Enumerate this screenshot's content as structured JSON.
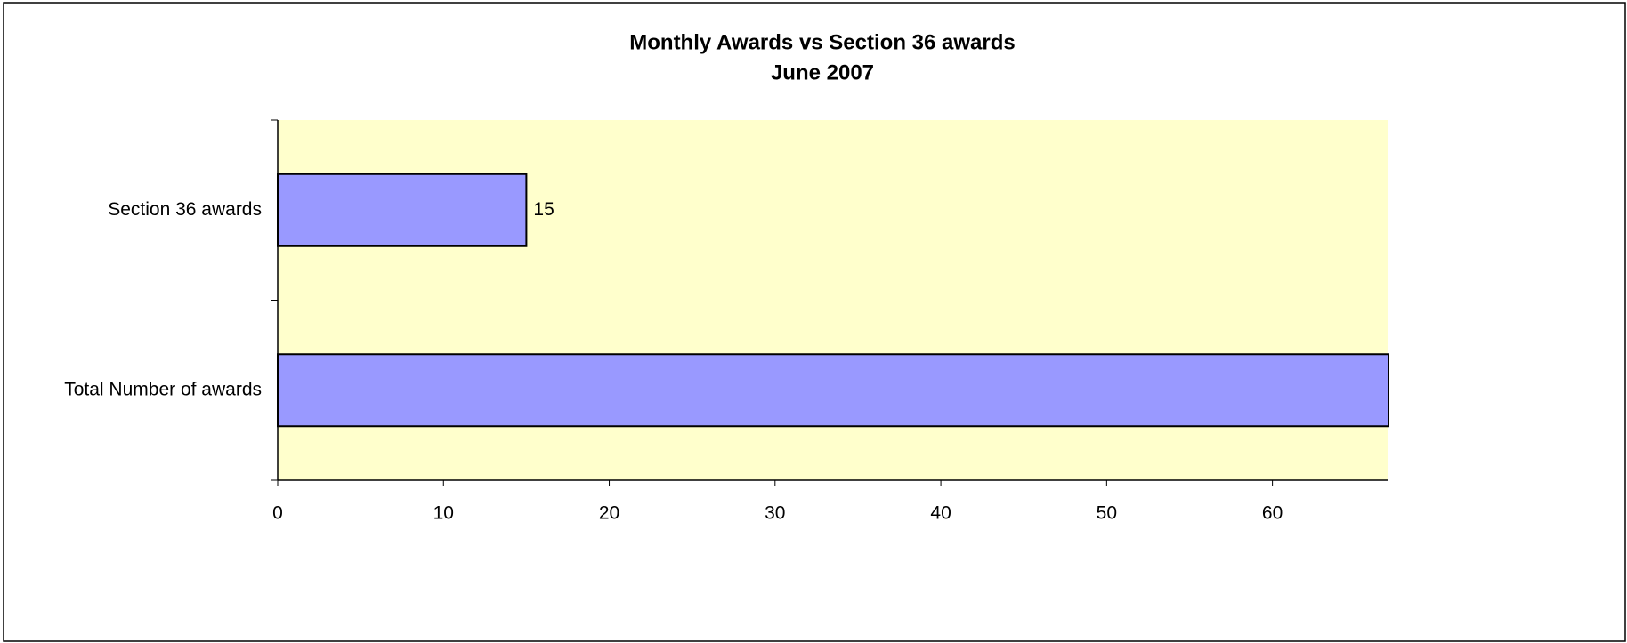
{
  "chart_data": {
    "type": "hbar",
    "title": "Monthly Awards vs Section 36 awards",
    "subtitle": "June 2007",
    "categories": [
      "Section 36 awards",
      "Total Number of awards"
    ],
    "values": [
      15,
      67
    ],
    "color": "#9999ff",
    "background": "#ffffcc",
    "xlim": [
      0,
      67
    ],
    "xticks": [
      0,
      10,
      20,
      30,
      40,
      50,
      60
    ],
    "grid": false,
    "data_labels": [
      true,
      false
    ]
  }
}
